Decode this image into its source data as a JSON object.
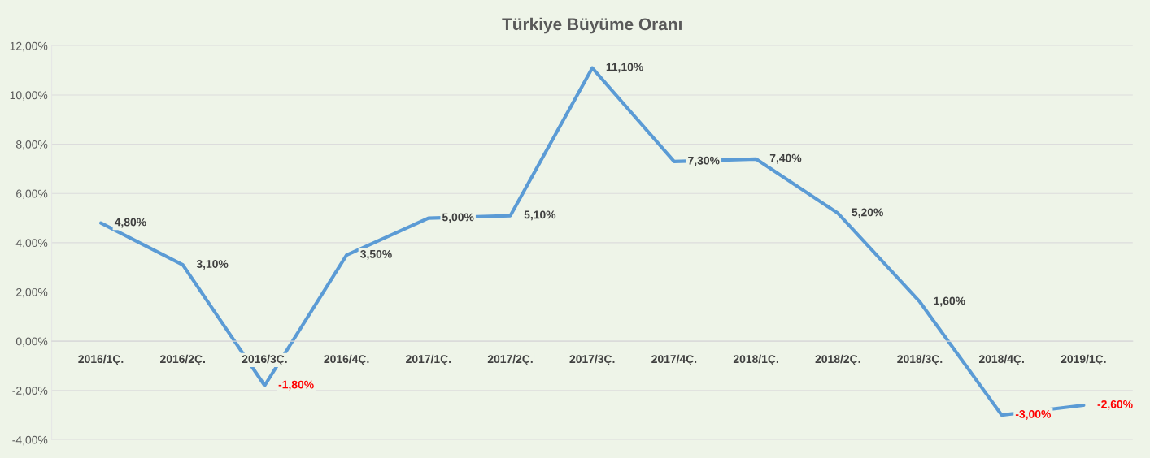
{
  "chart_data": {
    "type": "line",
    "title": "Türkiye Büyüme Oranı",
    "categories": [
      "2016/1Ç.",
      "2016/2Ç.",
      "2016/3Ç.",
      "2016/4Ç.",
      "2017/1Ç.",
      "2017/2Ç.",
      "2017/3Ç.",
      "2017/4Ç.",
      "2018/1Ç.",
      "2018/2Ç.",
      "2018/3Ç.",
      "2018/4Ç.",
      "2019/1Ç."
    ],
    "series": [
      {
        "color": "#5b9bd5",
        "values": [
          4.8,
          3.1,
          -1.8,
          3.5,
          5.0,
          5.1,
          11.1,
          7.3,
          7.4,
          5.2,
          1.6,
          -3.0,
          -2.6
        ],
        "value_labels": [
          "4,80%",
          "3,10%",
          "-1,80%",
          "3,50%",
          "5,00%",
          "5,10%",
          "11,10%",
          "7,30%",
          "7,40%",
          "5,20%",
          "1,60%",
          "-3,00%",
          "-2,60%"
        ]
      }
    ],
    "ylim": [
      -4,
      12
    ],
    "yticks": [
      {
        "value": -4,
        "label": "-4,00%"
      },
      {
        "value": -2,
        "label": "-2,00%"
      },
      {
        "value": 0,
        "label": "0,00%"
      },
      {
        "value": 2,
        "label": "2,00%"
      },
      {
        "value": 4,
        "label": "4,00%"
      },
      {
        "value": 6,
        "label": "6,00%"
      },
      {
        "value": 8,
        "label": "8,00%"
      },
      {
        "value": 10,
        "label": "10,00%"
      },
      {
        "value": 12,
        "label": "12,00%"
      }
    ],
    "grid": "y",
    "marker": "none",
    "line_style": "solid"
  }
}
